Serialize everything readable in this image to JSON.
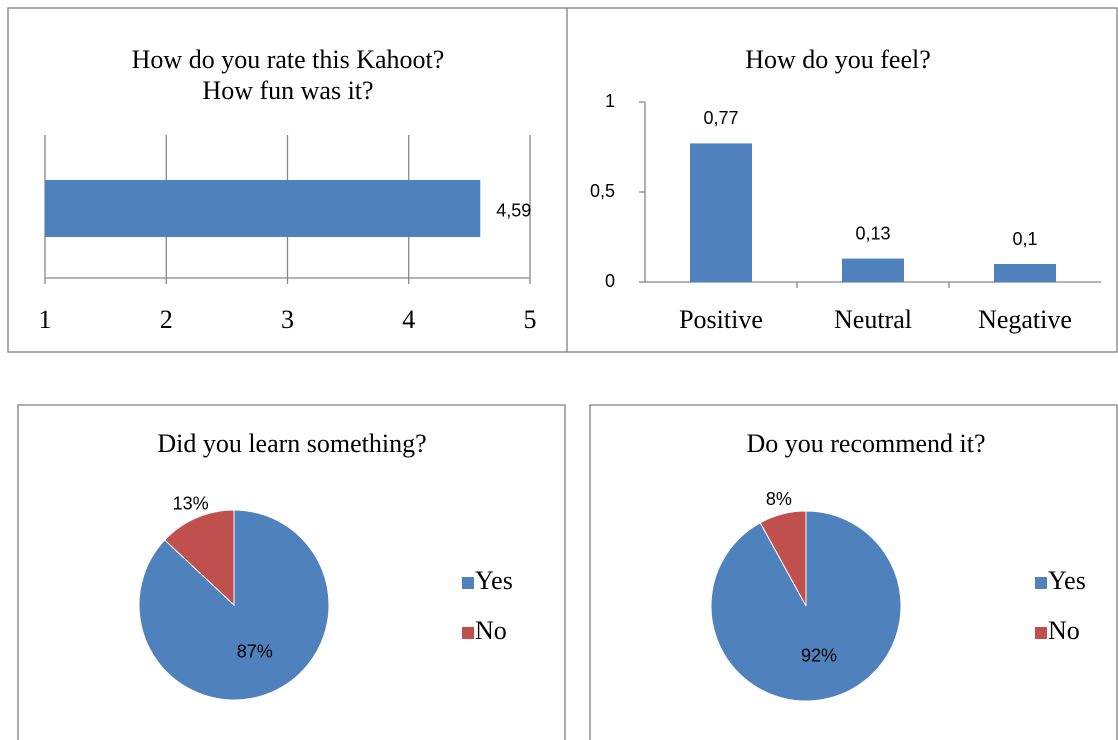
{
  "chart_data": [
    {
      "type": "hbar",
      "title": [
        "How do you rate this Kahoot?",
        "How fun was it?"
      ],
      "categories": [
        null
      ],
      "values": [
        4.59
      ],
      "value_labels": [
        "4,59"
      ],
      "color": "#4f81bd",
      "xlim": [
        1,
        5
      ],
      "xticks": [
        1,
        2,
        3,
        4,
        5
      ],
      "grid": true
    },
    {
      "type": "bar",
      "title": "How do you feel?",
      "categories": [
        "Positive",
        "Neutral",
        "Negative"
      ],
      "values": [
        0.77,
        0.13,
        0.1
      ],
      "value_labels": [
        "0,77",
        "0,13",
        "0,1"
      ],
      "color": "#4f81bd",
      "ylim": [
        0,
        1
      ],
      "yticks": [
        0,
        {
          "value": 0.5,
          "label": "0,5"
        },
        1
      ],
      "grid": false
    },
    {
      "type": "pie",
      "title": "Did you learn something?",
      "categories": [
        "Yes",
        "No"
      ],
      "values": [
        87,
        13
      ],
      "value_labels": [
        "87%",
        "13%"
      ],
      "colors": [
        "#4f81bd",
        "#c0504d"
      ],
      "legend": "right"
    },
    {
      "type": "pie",
      "title": "Do you recommend it?",
      "categories": [
        "Yes",
        "No"
      ],
      "values": [
        92,
        8
      ],
      "value_labels": [
        "92%",
        "8%"
      ],
      "colors": [
        "#4f81bd",
        "#c0504d"
      ],
      "legend": "right"
    }
  ]
}
